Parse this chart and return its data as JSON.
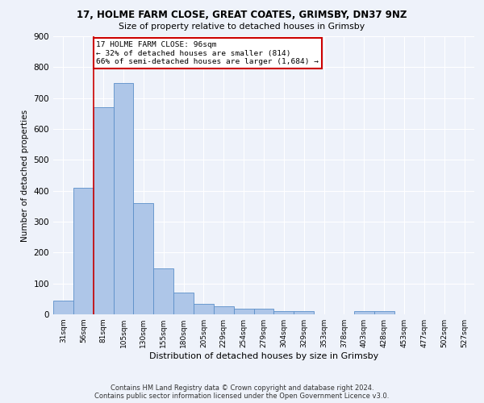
{
  "title1": "17, HOLME FARM CLOSE, GREAT COATES, GRIMSBY, DN37 9NZ",
  "title2": "Size of property relative to detached houses in Grimsby",
  "xlabel": "Distribution of detached houses by size in Grimsby",
  "ylabel": "Number of detached properties",
  "footnote": "Contains HM Land Registry data © Crown copyright and database right 2024.\nContains public sector information licensed under the Open Government Licence v3.0.",
  "bar_labels": [
    "31sqm",
    "56sqm",
    "81sqm",
    "105sqm",
    "130sqm",
    "155sqm",
    "180sqm",
    "205sqm",
    "229sqm",
    "254sqm",
    "279sqm",
    "304sqm",
    "329sqm",
    "353sqm",
    "378sqm",
    "403sqm",
    "428sqm",
    "453sqm",
    "477sqm",
    "502sqm",
    "527sqm"
  ],
  "bar_values": [
    45,
    410,
    670,
    750,
    360,
    150,
    70,
    35,
    27,
    18,
    18,
    10,
    10,
    0,
    0,
    10,
    10,
    0,
    0,
    0,
    0
  ],
  "bar_color": "#aec6e8",
  "bar_edge_color": "#5b8fc9",
  "vline_bar_index": 2,
  "annotation_text": "17 HOLME FARM CLOSE: 96sqm\n← 32% of detached houses are smaller (814)\n66% of semi-detached houses are larger (1,684) →",
  "annotation_box_color": "#ffffff",
  "annotation_border_color": "#cc0000",
  "vline_color": "#cc0000",
  "background_color": "#eef2fa",
  "grid_color": "#ffffff",
  "ylim": [
    0,
    900
  ],
  "yticks": [
    0,
    100,
    200,
    300,
    400,
    500,
    600,
    700,
    800,
    900
  ]
}
